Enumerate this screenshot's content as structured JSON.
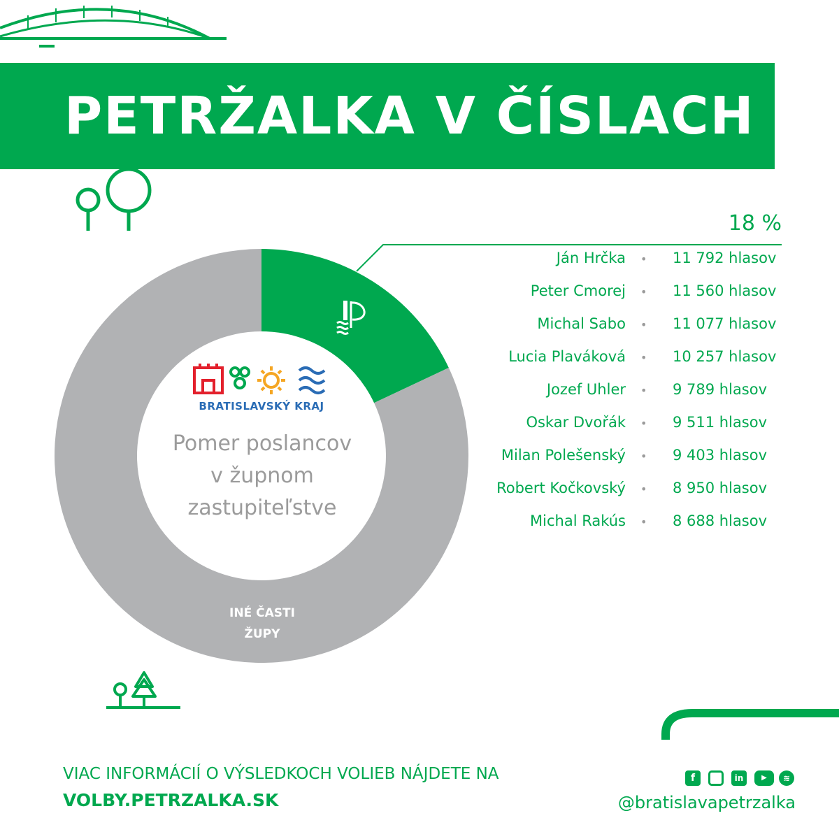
{
  "header": {
    "title": "PETRŽALKA V ČÍSLACH"
  },
  "colors": {
    "accent": "#00a84f",
    "other": "#b1b2b4",
    "blue": "#2a6cb5",
    "orange": "#f5a623",
    "red": "#e3202c"
  },
  "logo": {
    "caption": "BRATISLAVSKÝ KRAJ"
  },
  "center": {
    "line1": "Pomer poslancov",
    "line2": "v župnom",
    "line3": "zastupiteľstve"
  },
  "chart_data": {
    "type": "pie",
    "donut": true,
    "slices": [
      {
        "label": "",
        "value": 18,
        "icon": "petrzalka-logo-icon"
      },
      {
        "label": "INÉ ČASTI ŽUPY",
        "value": 82
      }
    ],
    "percent_label": "18 %"
  },
  "other_label": {
    "line1": "INÉ ČASTI",
    "line2": "ŽUPY"
  },
  "candidates": [
    {
      "name": "Ján Hrčka",
      "votes": "11 792 hlasov"
    },
    {
      "name": "Peter Cmorej",
      "votes": "11 560 hlasov"
    },
    {
      "name": "Michal Sabo",
      "votes": "11 077 hlasov"
    },
    {
      "name": "Lucia Plaváková",
      "votes": "10 257 hlasov"
    },
    {
      "name": "Jozef Uhler",
      "votes": "9 789 hlasov"
    },
    {
      "name": "Oskar Dvořák",
      "votes": "9 511 hlasov"
    },
    {
      "name": "Milan Polešenský",
      "votes": "9 403 hlasov"
    },
    {
      "name": "Robert Kočkovský",
      "votes": "8 950 hlasov"
    },
    {
      "name": "Michal Rakús",
      "votes": "8 688 hlasov"
    }
  ],
  "candidate_separator": "•",
  "footer": {
    "info": "VIAC INFORMÁCIÍ O VÝSLEDKOCH VOLIEB NÁJDETE NA",
    "url": "VOLBY.PETRZALKA.SK",
    "handle": "@bratislavapetrzalka",
    "social_icons": [
      "facebook-icon",
      "instagram-icon",
      "linkedin-icon",
      "youtube-icon",
      "spotify-icon"
    ]
  }
}
